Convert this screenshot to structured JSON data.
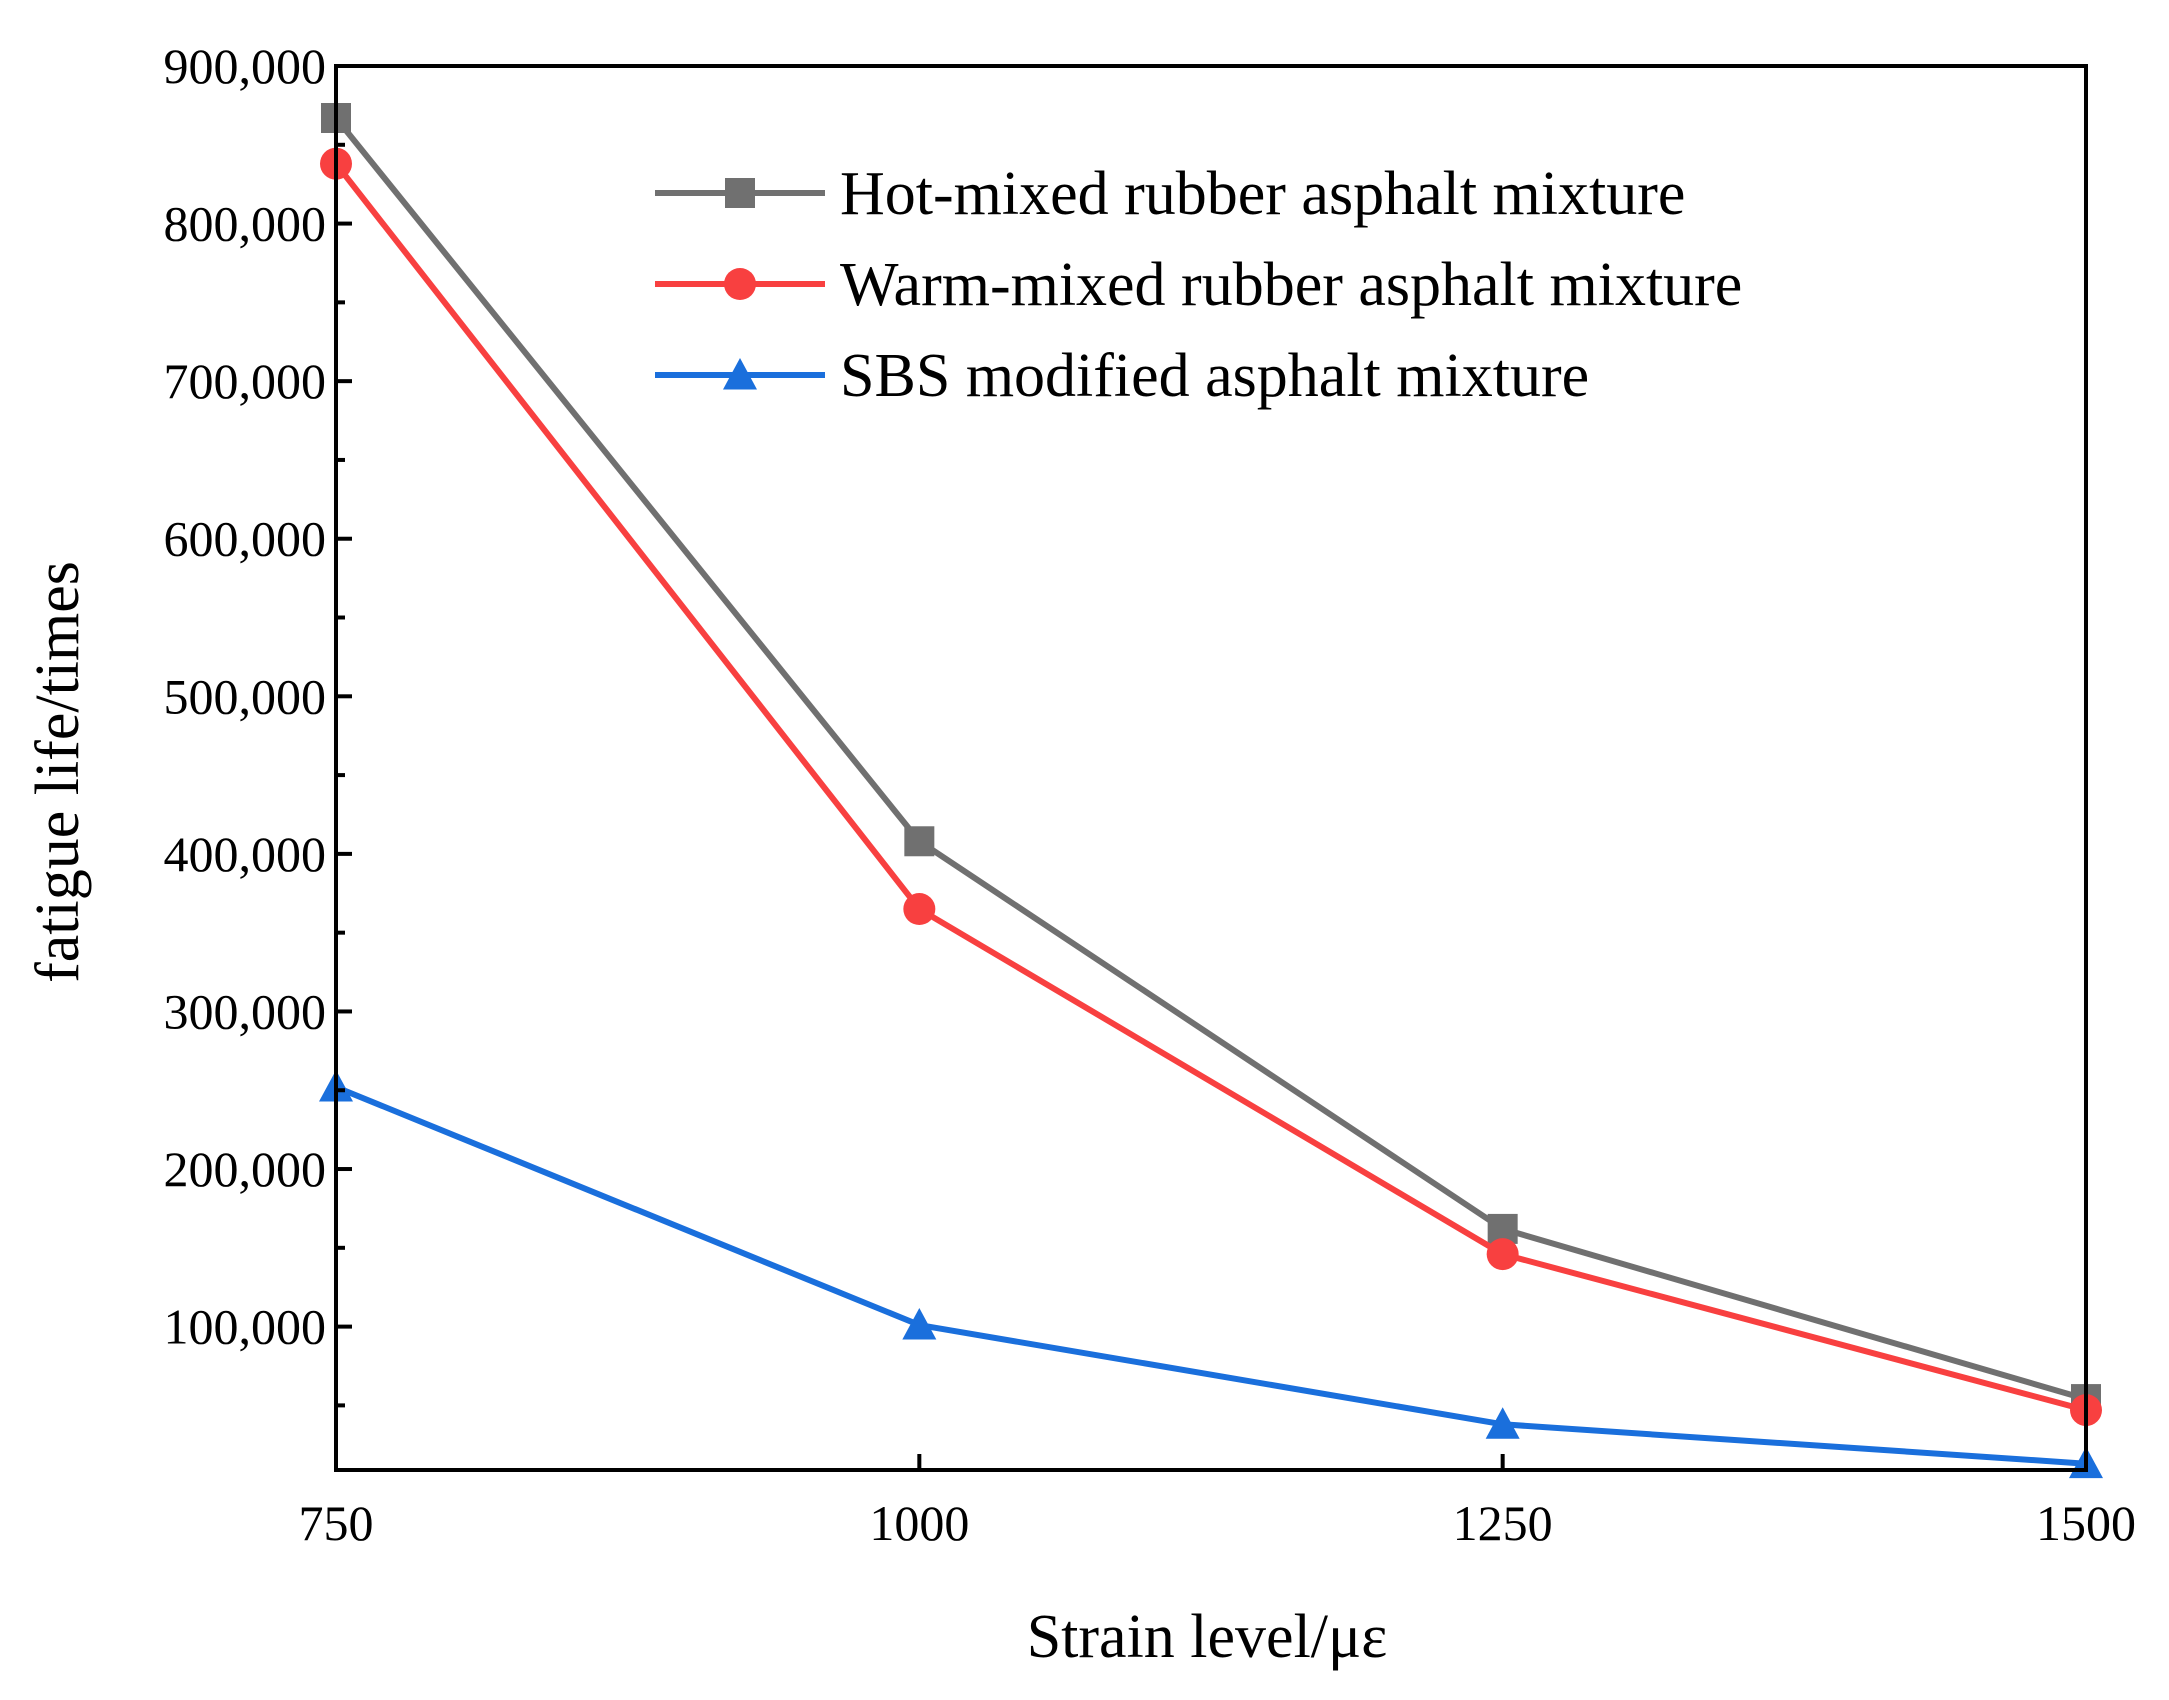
{
  "chart_data": {
    "type": "line",
    "title": "",
    "xlabel": "Strain level/με",
    "ylabel": "fatigue life/times",
    "x": [
      750,
      1000,
      1250,
      1500
    ],
    "xlim": [
      750,
      1500
    ],
    "ylim": [
      9000,
      900000
    ],
    "x_ticks": [
      750,
      1000,
      1250,
      1500
    ],
    "x_tick_labels": [
      "750",
      "1000",
      "1250",
      "1500"
    ],
    "y_ticks": [
      100000,
      200000,
      300000,
      400000,
      500000,
      600000,
      700000,
      800000,
      900000
    ],
    "y_tick_labels": [
      "100,000",
      "200,000",
      "300,000",
      "400,000",
      "500,000",
      "600,000",
      "700,000",
      "800,000",
      "900,000"
    ],
    "grid": false,
    "legend_position": "top-right",
    "series": [
      {
        "name": "Hot-mixed rubber asphalt mixture",
        "color": "#707070",
        "marker": "square",
        "values": [
          867000,
          408000,
          162000,
          54000
        ]
      },
      {
        "name": "Warm-mixed rubber asphalt mixture",
        "color": "#f84040",
        "marker": "circle",
        "values": [
          838000,
          365000,
          146000,
          47000
        ]
      },
      {
        "name": "SBS modified asphalt mixture",
        "color": "#1a6fdc",
        "marker": "triangle",
        "values": [
          252000,
          101000,
          38000,
          13000
        ]
      }
    ]
  }
}
